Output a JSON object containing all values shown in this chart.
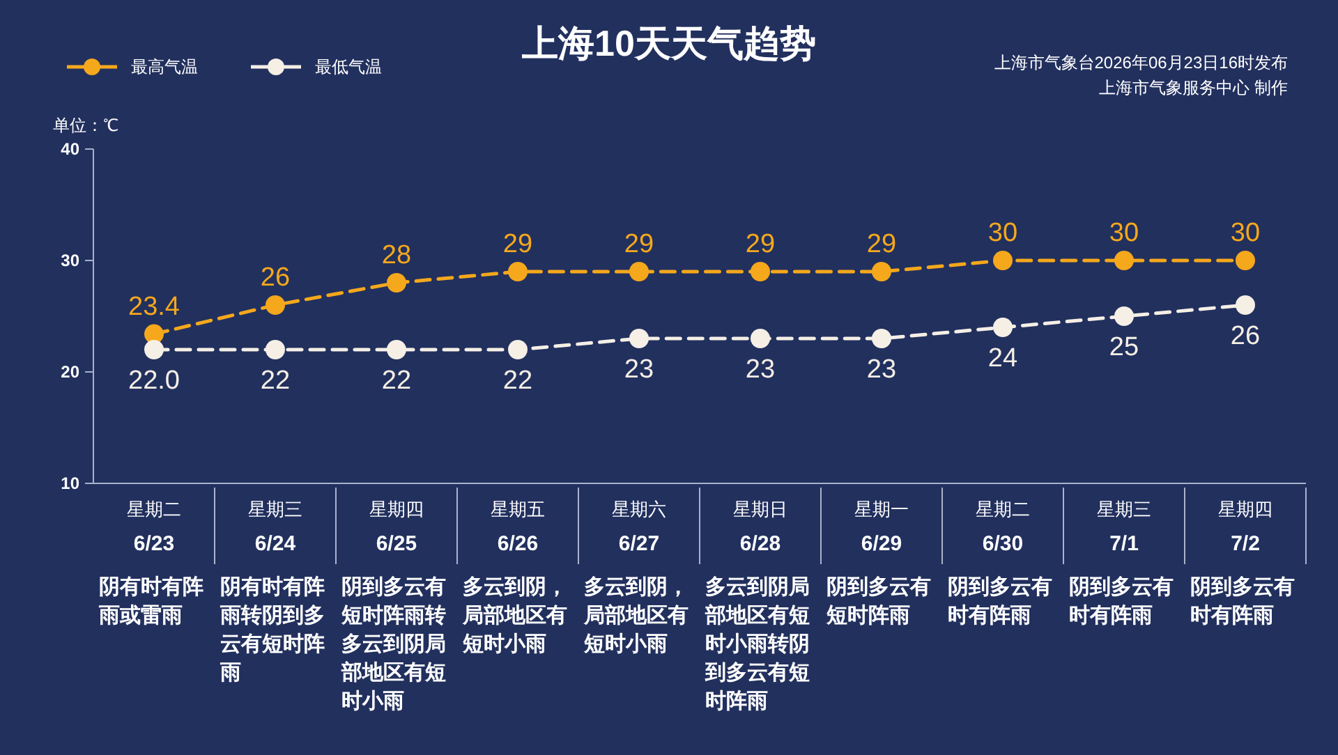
{
  "chart_data": {
    "type": "line",
    "title": "上海10天天气趋势",
    "ylabel": "单位：℃",
    "categories": [
      "星期二\n6/23",
      "星期三\n6/24",
      "星期四\n6/25",
      "星期五\n6/26",
      "星期六\n6/27",
      "星期日\n6/28",
      "星期一\n6/29",
      "星期二\n6/30",
      "星期三\n7/1",
      "星期四\n7/2"
    ],
    "series": [
      {
        "name": "最高气温",
        "color": "#f5a81c",
        "values": [
          23.4,
          26,
          28,
          29,
          29,
          29,
          29,
          30,
          30,
          30
        ],
        "value_labels": [
          "23.4",
          "26",
          "28",
          "29",
          "29",
          "29",
          "29",
          "30",
          "30",
          "30"
        ]
      },
      {
        "name": "最低气温",
        "color": "#f5efe6",
        "values": [
          22,
          22,
          22,
          22,
          23,
          23,
          23,
          24,
          25,
          26
        ],
        "value_labels": [
          "22.0",
          "22",
          "22",
          "22",
          "23",
          "23",
          "23",
          "24",
          "25",
          "26"
        ]
      }
    ],
    "ylim": [
      10,
      40
    ],
    "yticks": [
      10,
      20,
      30,
      40
    ],
    "grid": false,
    "legend": "top left",
    "marker": "circle",
    "line_style": "dashed",
    "annotations": [
      "阴有时有阵雨或雷雨",
      "阴有时有阵雨转阴到多云有短时阵雨",
      "阴到多云有短时阵雨转多云到阴局部地区有短时小雨",
      "多云到阴，局部地区有短时小雨",
      "多云到阴，局部地区有短时小雨",
      "多云到阴局部地区有短时小雨转阴到多云有短时阵雨",
      "阴到多云有短时阵雨",
      "阴到多云有时有阵雨",
      "阴到多云有时有阵雨",
      "阴到多云有时有阵雨",
      "上海市气象台2026年06月23日16时发布",
      "上海市气象服务中心  制作"
    ]
  }
}
